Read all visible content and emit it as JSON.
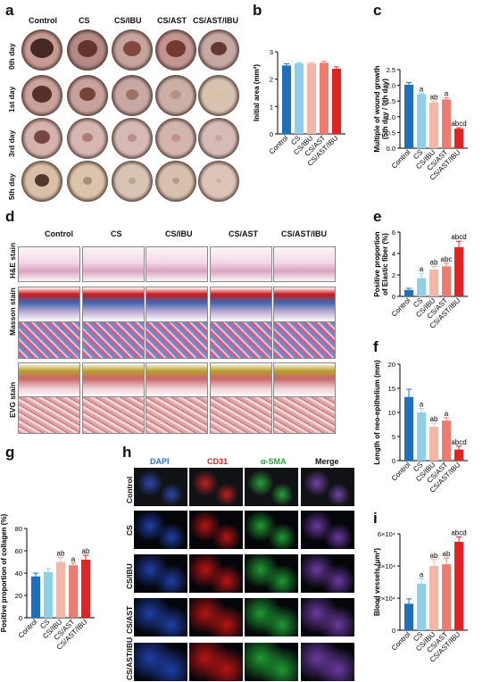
{
  "panels": {
    "a": "a",
    "b": "b",
    "c": "c",
    "d": "d",
    "e": "e",
    "f": "f",
    "g": "g",
    "h": "h",
    "i": "i"
  },
  "groups": [
    "Control",
    "CS",
    "CS/IBU",
    "CS/AST",
    "CS/AST/IBU"
  ],
  "panel_a": {
    "days": [
      "0th day",
      "1st day",
      "3rd day",
      "5th day"
    ]
  },
  "panel_d": {
    "stains": [
      "H&E stain",
      "Masson stain",
      "EVG stain"
    ]
  },
  "panel_h": {
    "channels": [
      "DAPI",
      "CD31",
      "α-SMA",
      "Merge"
    ],
    "channel_colors": [
      "#2f6fd6",
      "#e02020",
      "#22a83a",
      "#111111"
    ]
  },
  "bar_colors": [
    "#1f6fbf",
    "#8fd0e8",
    "#f4b6a8",
    "#ef7a70",
    "#e02424"
  ],
  "chart_data": [
    {
      "id": "b",
      "type": "bar",
      "ylabel": "Initial area (mm²)",
      "categories": [
        "Control",
        "CS",
        "CS/IBU",
        "CS/AST",
        "CS/AST/IBU"
      ],
      "values": [
        2.5,
        2.58,
        2.58,
        2.6,
        2.38
      ],
      "errors": [
        0.06,
        0.03,
        0.03,
        0.05,
        0.07
      ],
      "ylim": [
        0,
        3
      ],
      "yticks": [
        "0",
        "1",
        "2",
        "3"
      ],
      "ytick_values": [
        0,
        1,
        2,
        3
      ],
      "annotations": [
        "",
        "",
        "",
        "",
        ""
      ]
    },
    {
      "id": "c",
      "type": "bar",
      "ylabel": "Multiple of wound growth\n(5th day / 0th day)",
      "ylabel_lines": [
        "Multiple of wound growth",
        "(5th day / 0th day)"
      ],
      "categories": [
        "Control",
        "CS",
        "CS/IBU",
        "CS/AST",
        "CS/AST/IBU"
      ],
      "values": [
        2.02,
        1.72,
        1.45,
        1.55,
        0.62
      ],
      "errors": [
        0.07,
        0.03,
        0.04,
        0.05,
        0.03
      ],
      "ylim": [
        0,
        2.5
      ],
      "yticks": [
        "0.0",
        "0.5",
        "1.0",
        "1.5",
        "2.0",
        "2.5"
      ],
      "ytick_values": [
        0,
        0.5,
        1,
        1.5,
        2,
        2.5
      ],
      "annotations": [
        "",
        "a",
        "ab",
        "a",
        "abcd"
      ]
    },
    {
      "id": "e",
      "type": "bar",
      "ylabel_lines": [
        "Positive proportion",
        "of Elastic fiber (%)"
      ],
      "categories": [
        "Control",
        "CS",
        "CS/IBU",
        "CS/AST",
        "CS/AST/IBU"
      ],
      "values": [
        0.6,
        1.7,
        2.5,
        2.8,
        4.6
      ],
      "errors": [
        0.15,
        0.45,
        0.3,
        0.3,
        0.55
      ],
      "ylim": [
        0,
        6
      ],
      "yticks": [
        "0",
        "2",
        "4",
        "6"
      ],
      "ytick_values": [
        0,
        2,
        4,
        6
      ],
      "annotations": [
        "",
        "a",
        "ab",
        "abc",
        "abcd"
      ]
    },
    {
      "id": "f",
      "type": "bar",
      "ylabel_lines": [
        "Length of neo-epithelium (mm)"
      ],
      "categories": [
        "Control",
        "CS",
        "CS/IBU",
        "CS/AST",
        "CS/AST/IBU"
      ],
      "values": [
        13.2,
        10.0,
        7.0,
        8.3,
        2.3
      ],
      "errors": [
        1.6,
        0.8,
        0.8,
        0.6,
        0.7
      ],
      "ylim": [
        0,
        20
      ],
      "yticks": [
        "0",
        "5",
        "10",
        "15",
        "20"
      ],
      "ytick_values": [
        0,
        5,
        10,
        15,
        20
      ],
      "annotations": [
        "",
        "a",
        "ab",
        "a",
        "abcd"
      ]
    },
    {
      "id": "g",
      "type": "bar",
      "ylabel_lines": [
        "Positive proportion of collagen (%)"
      ],
      "categories": [
        "Control",
        "CS",
        "CS/IBU",
        "CS/AST",
        "CS/AST/IBU"
      ],
      "values": [
        37,
        41,
        50,
        47,
        52
      ],
      "errors": [
        3,
        3,
        4,
        2,
        4
      ],
      "ylim": [
        0,
        80
      ],
      "yticks": [
        "0",
        "20",
        "40",
        "60",
        "80"
      ],
      "ytick_values": [
        0,
        20,
        40,
        60,
        80
      ],
      "annotations": [
        "",
        "",
        "ab",
        "a",
        "ab"
      ]
    },
    {
      "id": "i",
      "type": "bar",
      "ylabel_lines": [
        "Blood vessels (μm²)"
      ],
      "categories": [
        "Control",
        "CS",
        "CS/IBU",
        "CS/AST",
        "CS/AST/IBU"
      ],
      "values": [
        16500,
        29000,
        40000,
        41000,
        55000
      ],
      "errors": [
        3000,
        3000,
        4000,
        4000,
        3000
      ],
      "ylim": [
        0,
        60000
      ],
      "yticks": [
        "0",
        "2×10⁴",
        "4×10⁴",
        "6×10⁴"
      ],
      "ytick_values": [
        0,
        20000,
        40000,
        60000
      ],
      "annotations": [
        "",
        "a",
        "ab",
        "ab",
        "abcd"
      ]
    }
  ]
}
